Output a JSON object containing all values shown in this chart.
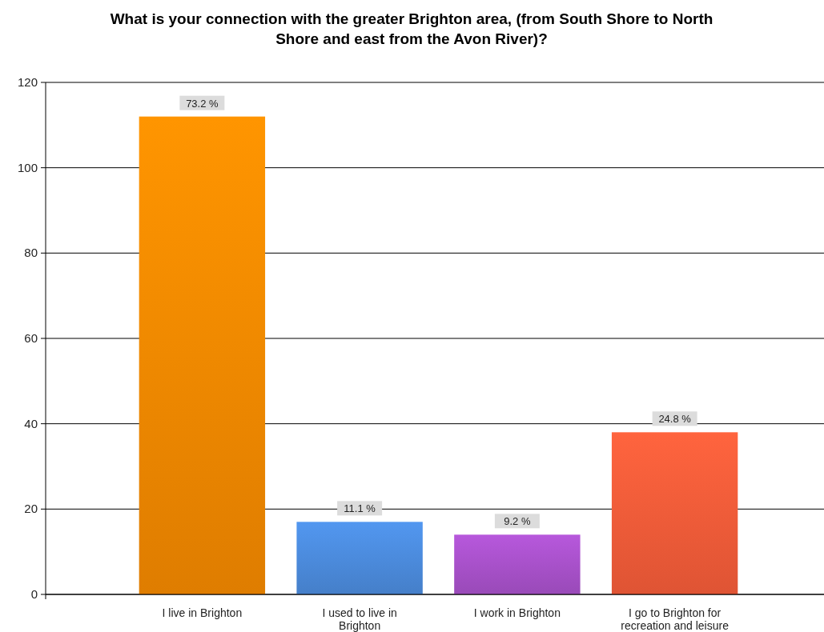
{
  "chart_data": {
    "type": "bar",
    "title": "What is your connection with the greater Brighton area, (from South Shore to North Shore and east from the Avon River)?",
    "categories": [
      "I live in Brighton",
      "I used to live in Brighton",
      "I work in Brighton",
      "I go to Brighton for recreation and leisure"
    ],
    "values": [
      112,
      17,
      14,
      38
    ],
    "colors": [
      "#f08600",
      "#4a88d8",
      "#a44fc6",
      "#f05a38"
    ],
    "annotations": [
      {
        "text": "73.2 %",
        "x": "I live in Brighton",
        "y": 112
      },
      {
        "text": "11.1 %",
        "x": "I used to live in Brighton",
        "y": 17
      },
      {
        "text": "9.2 %",
        "x": "I work in Brighton",
        "y": 14
      },
      {
        "text": "24.8 %",
        "x": "I go to Brighton for recreation and leisure",
        "y": 38
      }
    ],
    "ylim": [
      0,
      120
    ],
    "yticks": [
      0,
      20,
      40,
      60,
      80,
      100,
      120
    ],
    "grid": "y"
  }
}
